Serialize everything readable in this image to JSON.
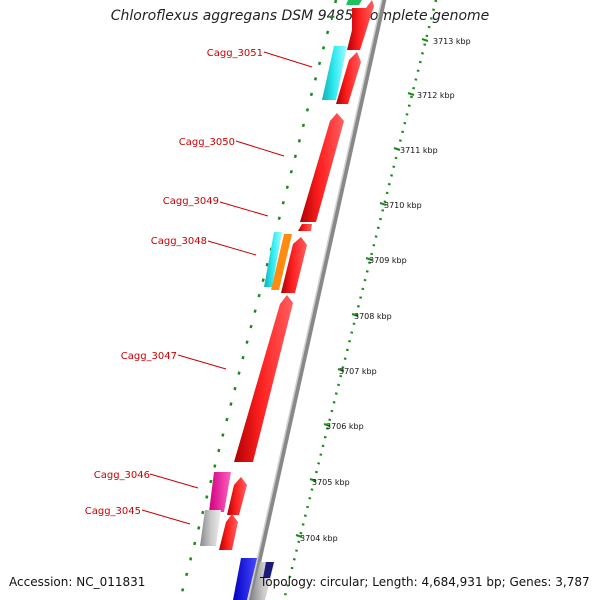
{
  "title": "Chloroflexus aggregans DSM 9485, complete genome",
  "footer": {
    "accession": "Accession: NC_011831",
    "summary": "Topology: circular; Length: 4,684,931 bp; Genes: 3,787"
  },
  "ruler": {
    "unit": "kbp",
    "ticks": [
      {
        "kbp": 3713,
        "label": "3713 kbp"
      },
      {
        "kbp": 3712,
        "label": "3712 kbp"
      },
      {
        "kbp": 3711,
        "label": "3711 kbp"
      },
      {
        "kbp": 3710,
        "label": "3710 kbp"
      },
      {
        "kbp": 3709,
        "label": "3709 kbp"
      },
      {
        "kbp": 3708,
        "label": "3708 kbp"
      },
      {
        "kbp": 3707,
        "label": "3707 kbp"
      },
      {
        "kbp": 3706,
        "label": "3706 kbp"
      },
      {
        "kbp": 3705,
        "label": "3705 kbp"
      },
      {
        "kbp": 3704,
        "label": "3704 kbp"
      }
    ]
  },
  "gene_labels": [
    {
      "name": "Cagg_3051"
    },
    {
      "name": "Cagg_3050"
    },
    {
      "name": "Cagg_3049"
    },
    {
      "name": "Cagg_3048"
    },
    {
      "name": "Cagg_3047"
    },
    {
      "name": "Cagg_3046"
    },
    {
      "name": "Cagg_3045"
    }
  ],
  "colors": {
    "cds_red": "#ff1010",
    "cyan": "#22e0e8",
    "orange": "#ff8c10",
    "magenta": "#ff2aa8",
    "gray": "#b8b8b8",
    "blue": "#1818ff",
    "green_dots": "#1a8a1a",
    "label_red": "#cc0000",
    "backbone": "#888888"
  }
}
